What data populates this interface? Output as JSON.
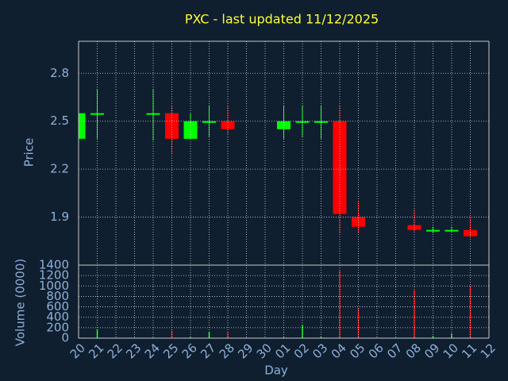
{
  "chart_data": {
    "type": "candlestick",
    "title": "PXC - last updated 11/12/2025",
    "xlabel": "Day",
    "ylabel": "Price",
    "categories": [
      "20",
      "21",
      "22",
      "23",
      "24",
      "25",
      "26",
      "27",
      "28",
      "29",
      "30",
      "01",
      "02",
      "03",
      "04",
      "05",
      "06",
      "07",
      "08",
      "09",
      "10",
      "11",
      "12"
    ],
    "open": [
      2.39,
      2.55,
      null,
      null,
      2.55,
      2.55,
      2.39,
      2.5,
      2.5,
      null,
      null,
      2.45,
      2.5,
      2.5,
      2.5,
      1.9,
      null,
      null,
      1.85,
      1.82,
      1.82,
      1.82,
      null
    ],
    "high": [
      2.55,
      2.7,
      null,
      null,
      2.7,
      2.6,
      2.55,
      2.6,
      2.6,
      null,
      null,
      2.6,
      2.6,
      2.6,
      2.6,
      2.0,
      null,
      null,
      1.95,
      1.84,
      1.84,
      1.9,
      null
    ],
    "low": [
      2.39,
      2.39,
      null,
      null,
      2.38,
      2.3,
      2.39,
      2.4,
      2.42,
      null,
      null,
      2.39,
      2.4,
      2.39,
      1.8,
      1.8,
      null,
      null,
      1.81,
      1.8,
      1.81,
      1.78,
      null
    ],
    "close": [
      2.55,
      2.55,
      null,
      null,
      2.55,
      2.39,
      2.5,
      2.5,
      2.45,
      null,
      null,
      2.5,
      2.5,
      2.5,
      1.92,
      1.84,
      null,
      null,
      1.82,
      1.82,
      1.82,
      1.78,
      null
    ],
    "ylim": [
      1.6,
      3.0
    ],
    "yticks": [
      1.9,
      2.2,
      2.5,
      2.8
    ],
    "up_color": "#00ff00",
    "down_color": "#ff0000",
    "grid": true,
    "volume": {
      "ylabel": "Volume (0000)",
      "values": [
        10,
        170,
        null,
        null,
        10,
        150,
        20,
        120,
        120,
        null,
        null,
        20,
        250,
        30,
        1300,
        580,
        null,
        null,
        920,
        40,
        90,
        1000,
        null
      ],
      "ylim": [
        0,
        1400
      ],
      "yticks": [
        0,
        200,
        400,
        600,
        800,
        1000,
        1200,
        1400
      ]
    }
  }
}
